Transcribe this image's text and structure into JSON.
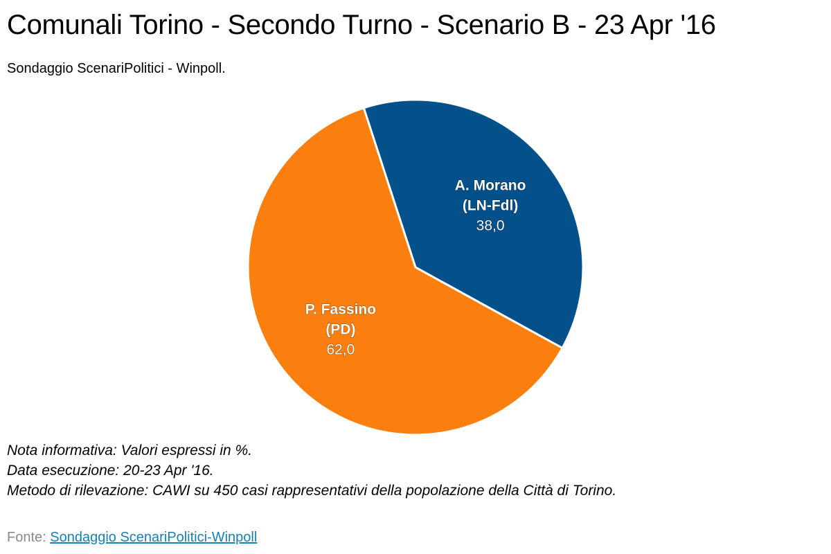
{
  "title": "Comunali Torino - Secondo Turno - Scenario B - 23 Apr '16",
  "subtitle": "Sondaggio ScenariPolitici - Winpoll.",
  "chart_data": {
    "type": "pie",
    "slices": [
      {
        "name_line1": "A. Morano",
        "name_line2": "(LN-Fdl)",
        "value": 38.0,
        "value_label": "38,0",
        "color": "#03508a"
      },
      {
        "name_line1": "P. Fassino",
        "name_line2": "(PD)",
        "value": 62.0,
        "value_label": "62,0",
        "color": "#fb7f0f"
      }
    ]
  },
  "notes": {
    "line1": "Nota informativa: Valori espressi in %.",
    "line2": "Data esecuzione: 20-23 Apr '16.",
    "line3": "Metodo di rilevazione: CAWI su 450 casi rappresentativi della popolazione della Città di Torino."
  },
  "source": {
    "label": "Fonte: ",
    "link_text": "Sondaggio ScenariPolitici-Winpoll"
  }
}
